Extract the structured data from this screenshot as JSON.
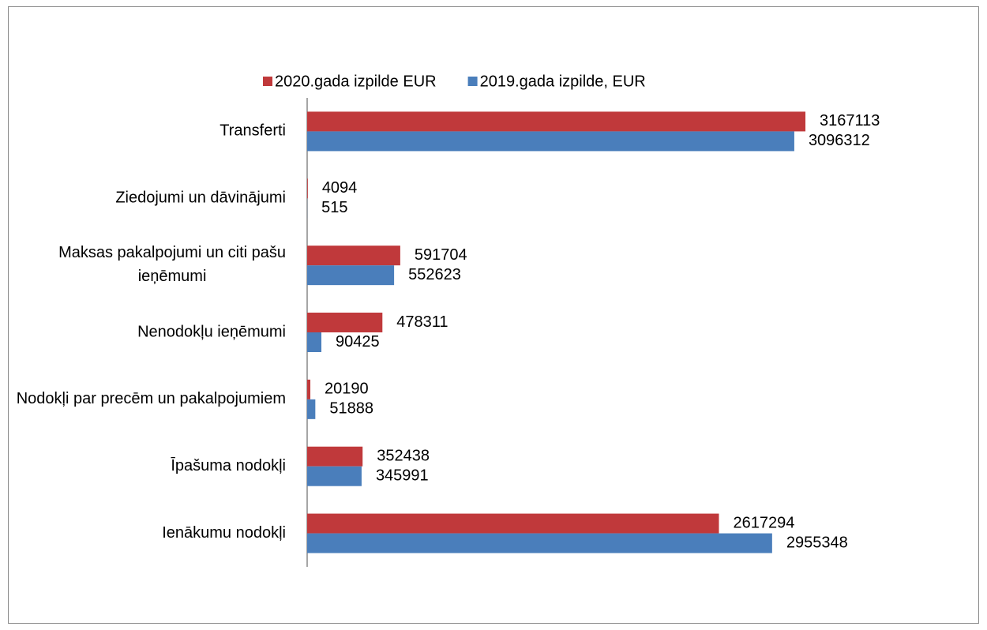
{
  "chart_data": {
    "type": "bar",
    "orientation": "horizontal",
    "categories": [
      "Transferti",
      "Ziedojumi un dāvinājumi",
      "Maksas pakalpojumi un citi pašu ieņēmumi",
      "Nenodokļu ieņēmumi",
      "Nodokļi par precēm un pakalpojumiem",
      "Īpašuma nodokļi",
      "Ienākumu nodokļi"
    ],
    "series": [
      {
        "name": "2020.gada izpilde EUR",
        "color": "#c0393b",
        "values": [
          3167113,
          4094,
          591704,
          478311,
          20190,
          352438,
          2617294
        ]
      },
      {
        "name": "2019.gada izpilde, EUR",
        "color": "#4a7ebb",
        "values": [
          3096312,
          515,
          552623,
          90425,
          51888,
          345991,
          2955348
        ]
      }
    ],
    "xlim": [
      0,
      4000000
    ],
    "legend": "top"
  }
}
